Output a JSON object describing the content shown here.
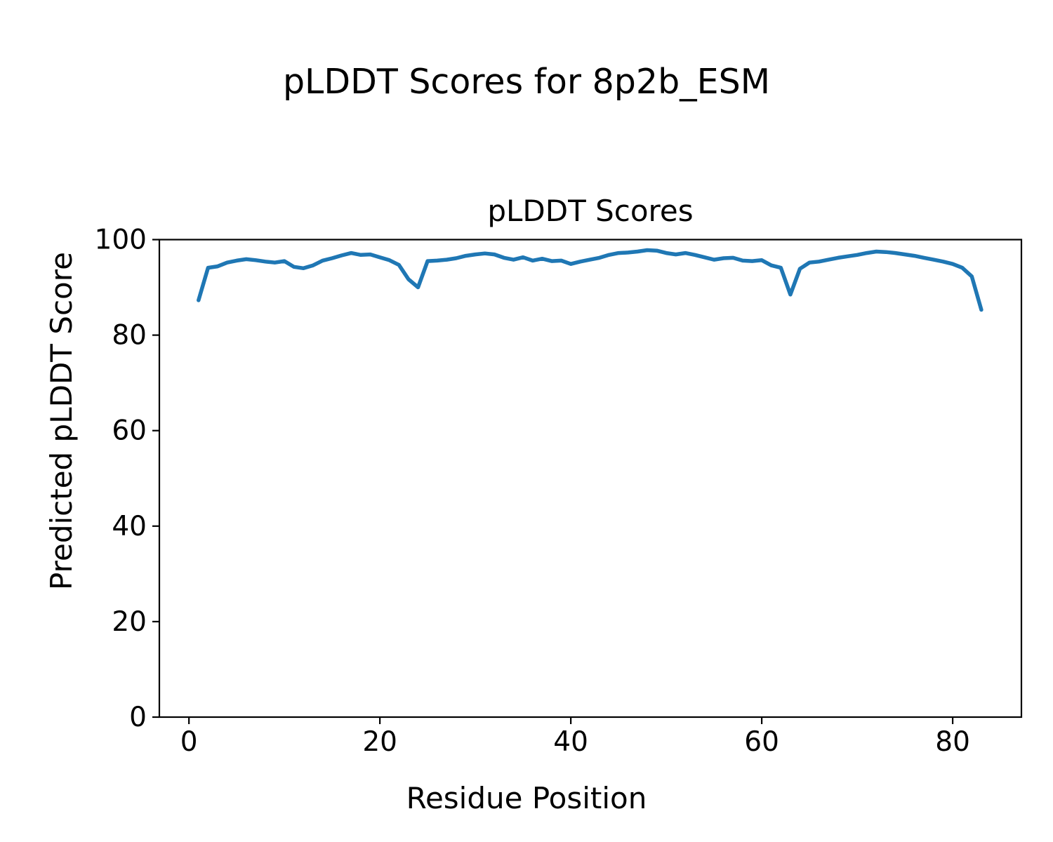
{
  "figure": {
    "suptitle": "pLDDT Scores for 8p2b_ESM",
    "background_color": "#ffffff",
    "text_color": "#000000"
  },
  "chart_data": {
    "type": "line",
    "title": "pLDDT Scores",
    "xlabel": "Residue Position",
    "ylabel": "Predicted pLDDT Score",
    "line_color": "#1f77b4",
    "grid": false,
    "legend": null,
    "xlim": [
      -3.1,
      87.2
    ],
    "ylim": [
      0,
      100
    ],
    "xticks": [
      0,
      20,
      40,
      60,
      80
    ],
    "yticks": [
      0,
      20,
      40,
      60,
      80,
      100
    ],
    "series": [
      {
        "name": "pLDDT",
        "x": [
          1,
          2,
          3,
          4,
          5,
          6,
          7,
          8,
          9,
          10,
          11,
          12,
          13,
          14,
          15,
          16,
          17,
          18,
          19,
          20,
          21,
          22,
          23,
          24,
          25,
          26,
          27,
          28,
          29,
          30,
          31,
          32,
          33,
          34,
          35,
          36,
          37,
          38,
          39,
          40,
          41,
          42,
          43,
          44,
          45,
          46,
          47,
          48,
          49,
          50,
          51,
          52,
          53,
          54,
          55,
          56,
          57,
          58,
          59,
          60,
          61,
          62,
          63,
          64,
          65,
          66,
          67,
          68,
          69,
          70,
          71,
          72,
          73,
          74,
          75,
          76,
          77,
          78,
          79,
          80,
          81,
          82,
          83
        ],
        "values": [
          87.3,
          94.1,
          94.4,
          95.2,
          95.6,
          95.9,
          95.7,
          95.4,
          95.2,
          95.5,
          94.3,
          94.0,
          94.6,
          95.6,
          96.1,
          96.7,
          97.2,
          96.8,
          96.9,
          96.3,
          95.7,
          94.7,
          91.7,
          90.0,
          95.5,
          95.6,
          95.8,
          96.1,
          96.6,
          96.9,
          97.1,
          96.9,
          96.2,
          95.8,
          96.3,
          95.6,
          96.0,
          95.5,
          95.6,
          94.9,
          95.4,
          95.8,
          96.2,
          96.8,
          97.2,
          97.3,
          97.5,
          97.8,
          97.7,
          97.2,
          96.9,
          97.2,
          96.8,
          96.3,
          95.8,
          96.1,
          96.2,
          95.6,
          95.5,
          95.7,
          94.6,
          94.1,
          88.5,
          93.9,
          95.2,
          95.4,
          95.8,
          96.2,
          96.5,
          96.8,
          97.2,
          97.5,
          97.4,
          97.2,
          96.9,
          96.6,
          96.2,
          95.8,
          95.4,
          94.9,
          94.1,
          92.3,
          85.3
        ]
      }
    ]
  }
}
